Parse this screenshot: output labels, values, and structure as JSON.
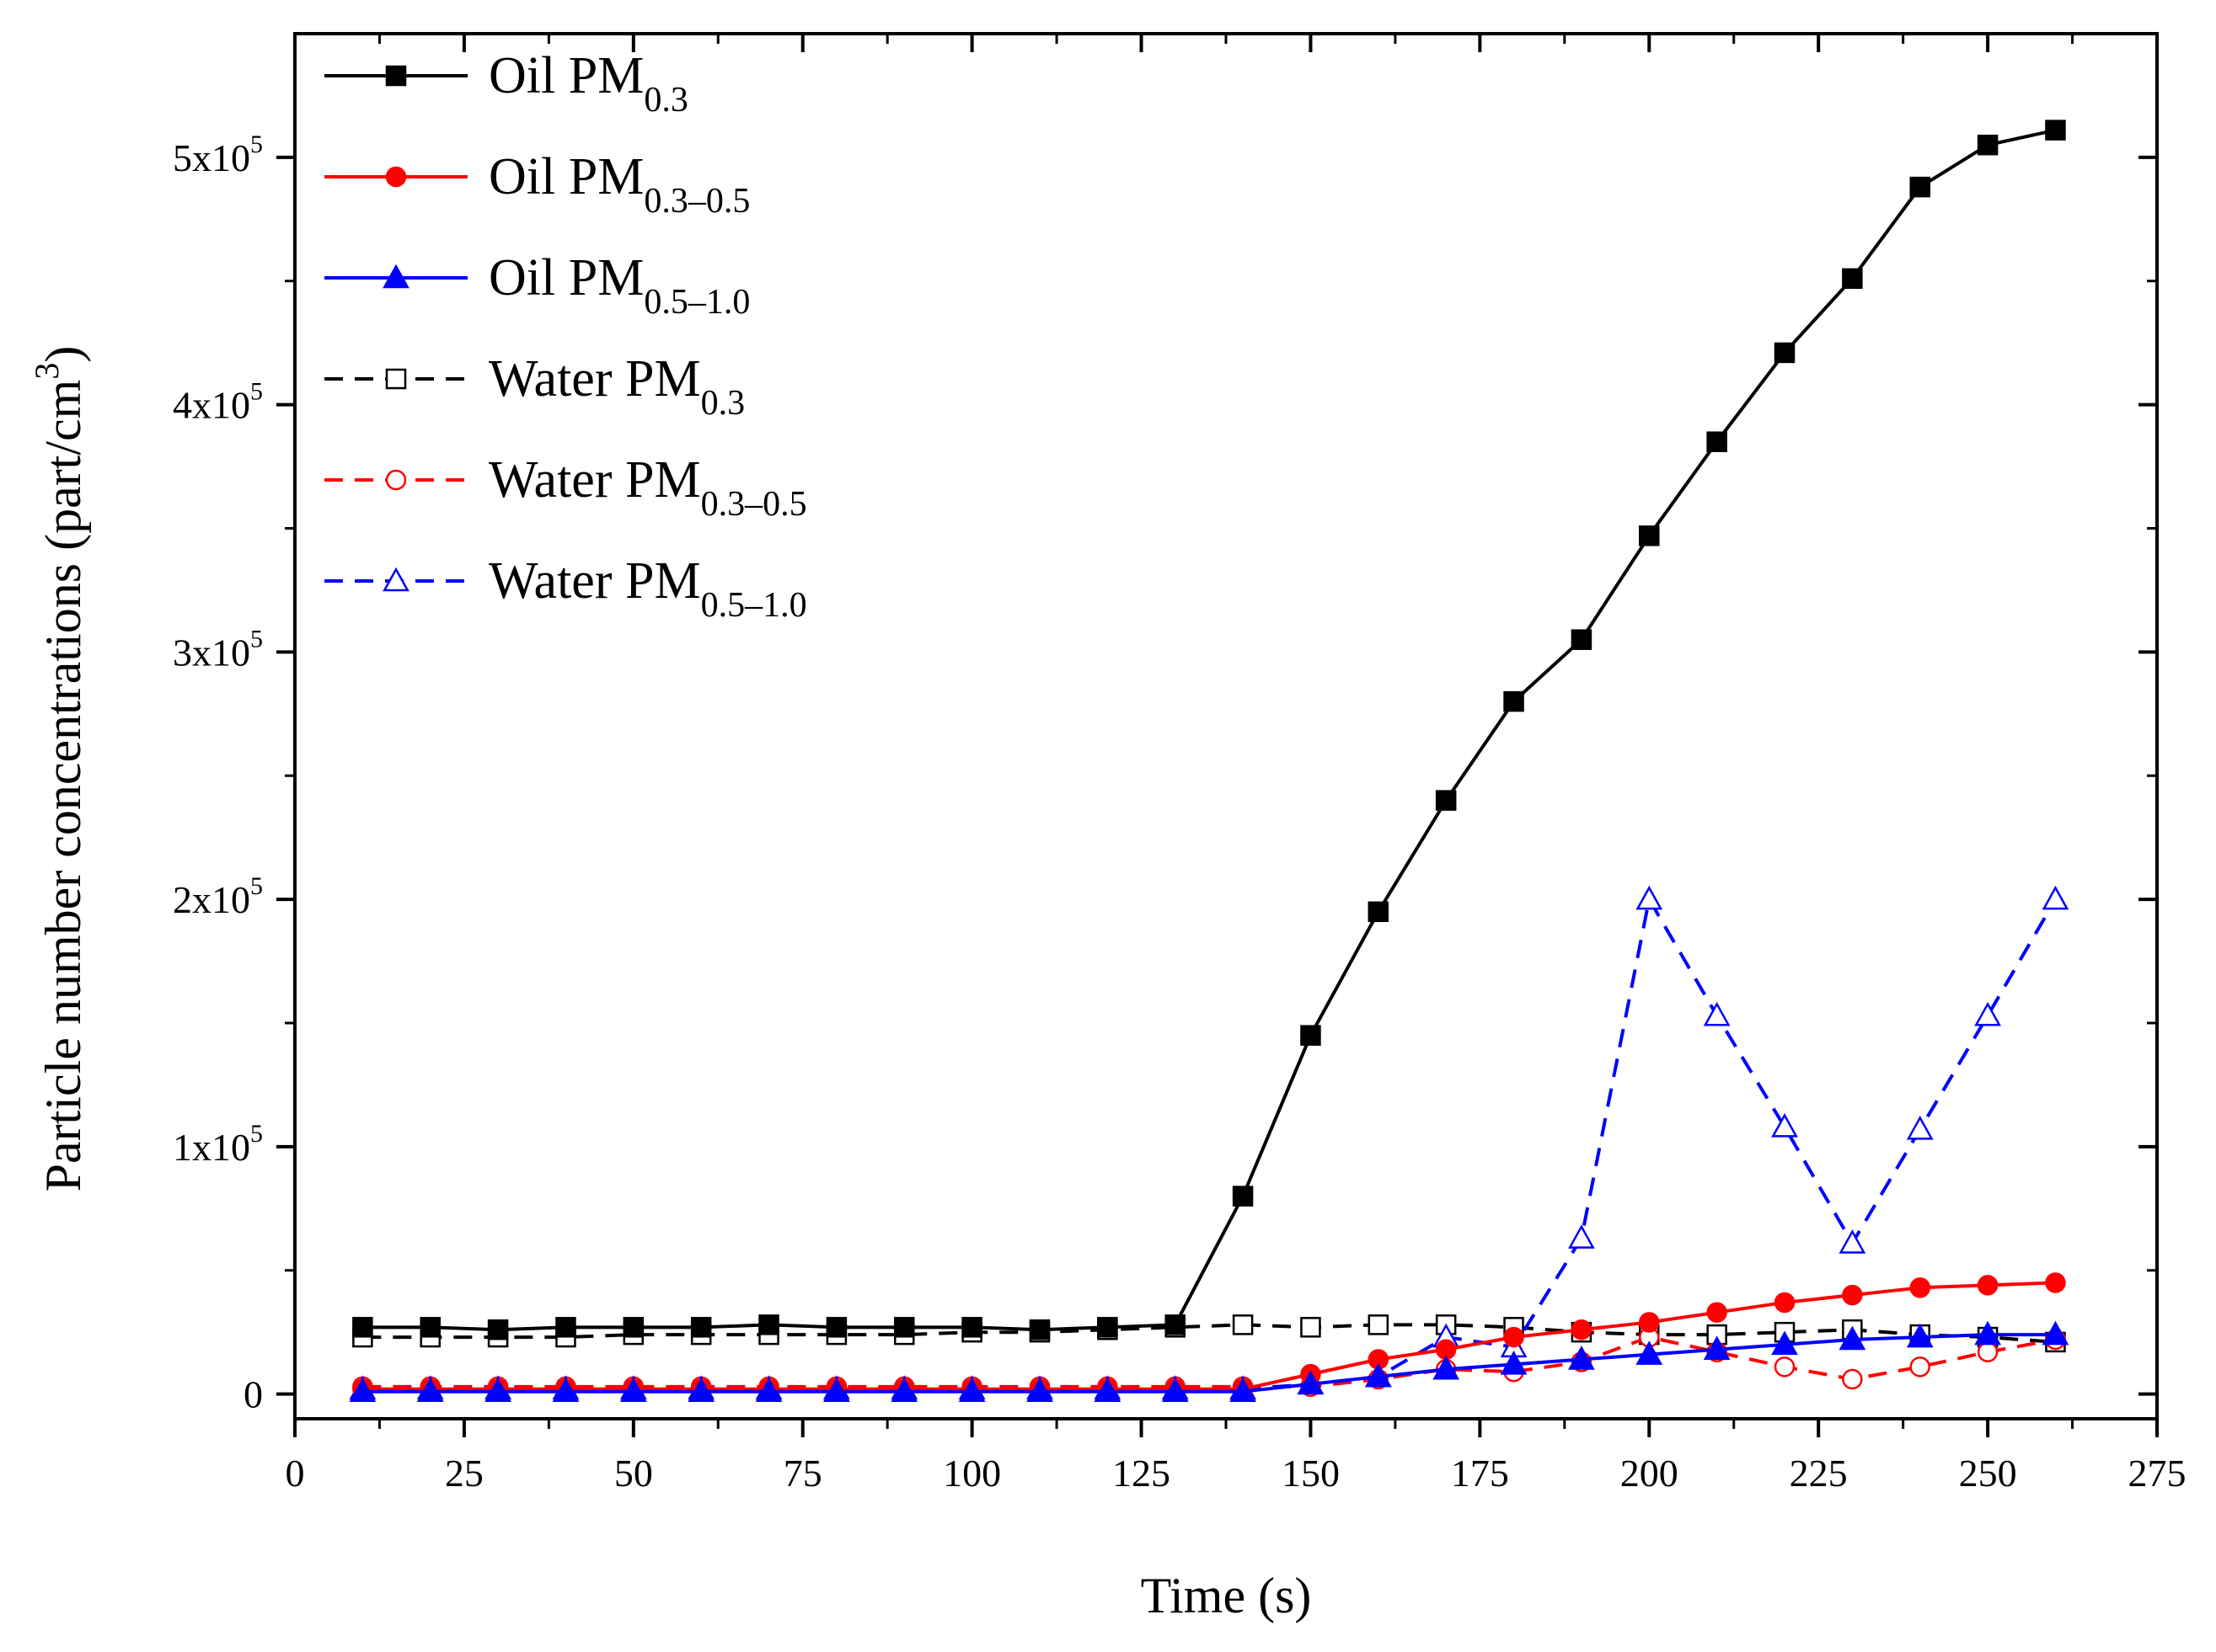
{
  "chart_data": {
    "type": "line",
    "xlabel": "Time (s)",
    "ylabel": "Particle number concentrations (part/cm³)",
    "ylabel_parts": {
      "main": "Particle number concentrations (part/cm",
      "sup": "3",
      "end": ")"
    },
    "xlim": [
      0,
      275
    ],
    "ylim": [
      -10000,
      550000
    ],
    "x_ticks": [
      0,
      25,
      50,
      75,
      100,
      125,
      150,
      175,
      200,
      225,
      250,
      275
    ],
    "y_ticks": [
      {
        "value": 0,
        "label": "0"
      },
      {
        "value": 100000,
        "label": "1x10",
        "exp": "5"
      },
      {
        "value": 200000,
        "label": "2x10",
        "exp": "5"
      },
      {
        "value": 300000,
        "label": "3x10",
        "exp": "5"
      },
      {
        "value": 400000,
        "label": "4x10",
        "exp": "5"
      },
      {
        "value": 500000,
        "label": "5x10",
        "exp": "5"
      }
    ],
    "grid": false,
    "legend_position": "top-left",
    "x": [
      10,
      20,
      30,
      40,
      50,
      60,
      70,
      80,
      90,
      100,
      110,
      120,
      130,
      140,
      150,
      160,
      170,
      180,
      190,
      200,
      210,
      220,
      230,
      240,
      250,
      260
    ],
    "series": [
      {
        "name": "Oil PM0.3",
        "label_main": "Oil PM",
        "label_sub": "0.3",
        "color": "#000000",
        "dash": "solid",
        "marker": "square",
        "filled": true,
        "values": [
          27000,
          27000,
          26000,
          27000,
          27000,
          27000,
          28000,
          27000,
          27000,
          27000,
          26000,
          27000,
          28000,
          80000,
          145000,
          195000,
          240000,
          280000,
          305000,
          347000,
          385000,
          421000,
          451000,
          488000,
          505000,
          511000
        ]
      },
      {
        "name": "Oil PM0.3–0.5",
        "label_main": "Oil PM",
        "label_sub": "0.3–0.5",
        "color": "#ff0000",
        "dash": "solid",
        "marker": "circle",
        "filled": true,
        "values": [
          2000,
          2000,
          2000,
          2000,
          2000,
          2000,
          2000,
          2000,
          2000,
          2000,
          2000,
          2000,
          2000,
          2000,
          8000,
          14000,
          18000,
          23000,
          26000,
          29000,
          33000,
          37000,
          40000,
          43000,
          44000,
          45000
        ]
      },
      {
        "name": "Oil PM0.5–1.0",
        "label_main": "Oil PM",
        "label_sub": "0.5–1.0",
        "color": "#0000ff",
        "dash": "solid",
        "marker": "triangle",
        "filled": true,
        "values": [
          1000,
          1000,
          1000,
          1000,
          1000,
          1000,
          1000,
          1000,
          1000,
          1000,
          1000,
          1000,
          1000,
          1000,
          4000,
          7000,
          10000,
          12000,
          14000,
          16000,
          18000,
          20000,
          22000,
          23000,
          24000,
          24000
        ]
      },
      {
        "name": "Water PM0.3",
        "label_main": "Water PM",
        "label_sub": "0.3",
        "color": "#000000",
        "dash": "dashed",
        "marker": "square",
        "filled": false,
        "values": [
          23000,
          23000,
          23000,
          23000,
          24000,
          24000,
          24000,
          24000,
          24000,
          25000,
          25000,
          26000,
          27000,
          28000,
          27000,
          28000,
          28000,
          27000,
          25000,
          24000,
          24000,
          25000,
          26000,
          24000,
          23000,
          21000
        ]
      },
      {
        "name": "Water PM0.3–0.5",
        "label_main": "Water PM",
        "label_sub": "0.3–0.5",
        "color": "#ff0000",
        "dash": "dashed",
        "marker": "circle",
        "filled": false,
        "values": [
          3000,
          3000,
          3000,
          3000,
          3000,
          3000,
          3000,
          3000,
          3000,
          3000,
          3000,
          3000,
          3000,
          3000,
          3000,
          6000,
          10000,
          9000,
          13000,
          23000,
          17000,
          11000,
          6000,
          11000,
          17000,
          22000
        ]
      },
      {
        "name": "Water PM0.5–1.0",
        "label_main": "Water PM",
        "label_sub": "0.5–1.0",
        "color": "#0000ff",
        "dash": "dashed",
        "marker": "triangle",
        "filled": false,
        "values": [
          2000,
          2000,
          2000,
          2000,
          2000,
          2000,
          2000,
          2000,
          2000,
          2000,
          2000,
          2000,
          2000,
          2000,
          4000,
          7000,
          23000,
          19000,
          63000,
          200000,
          153000,
          108000,
          61000,
          107000,
          153000,
          200000
        ]
      }
    ]
  }
}
